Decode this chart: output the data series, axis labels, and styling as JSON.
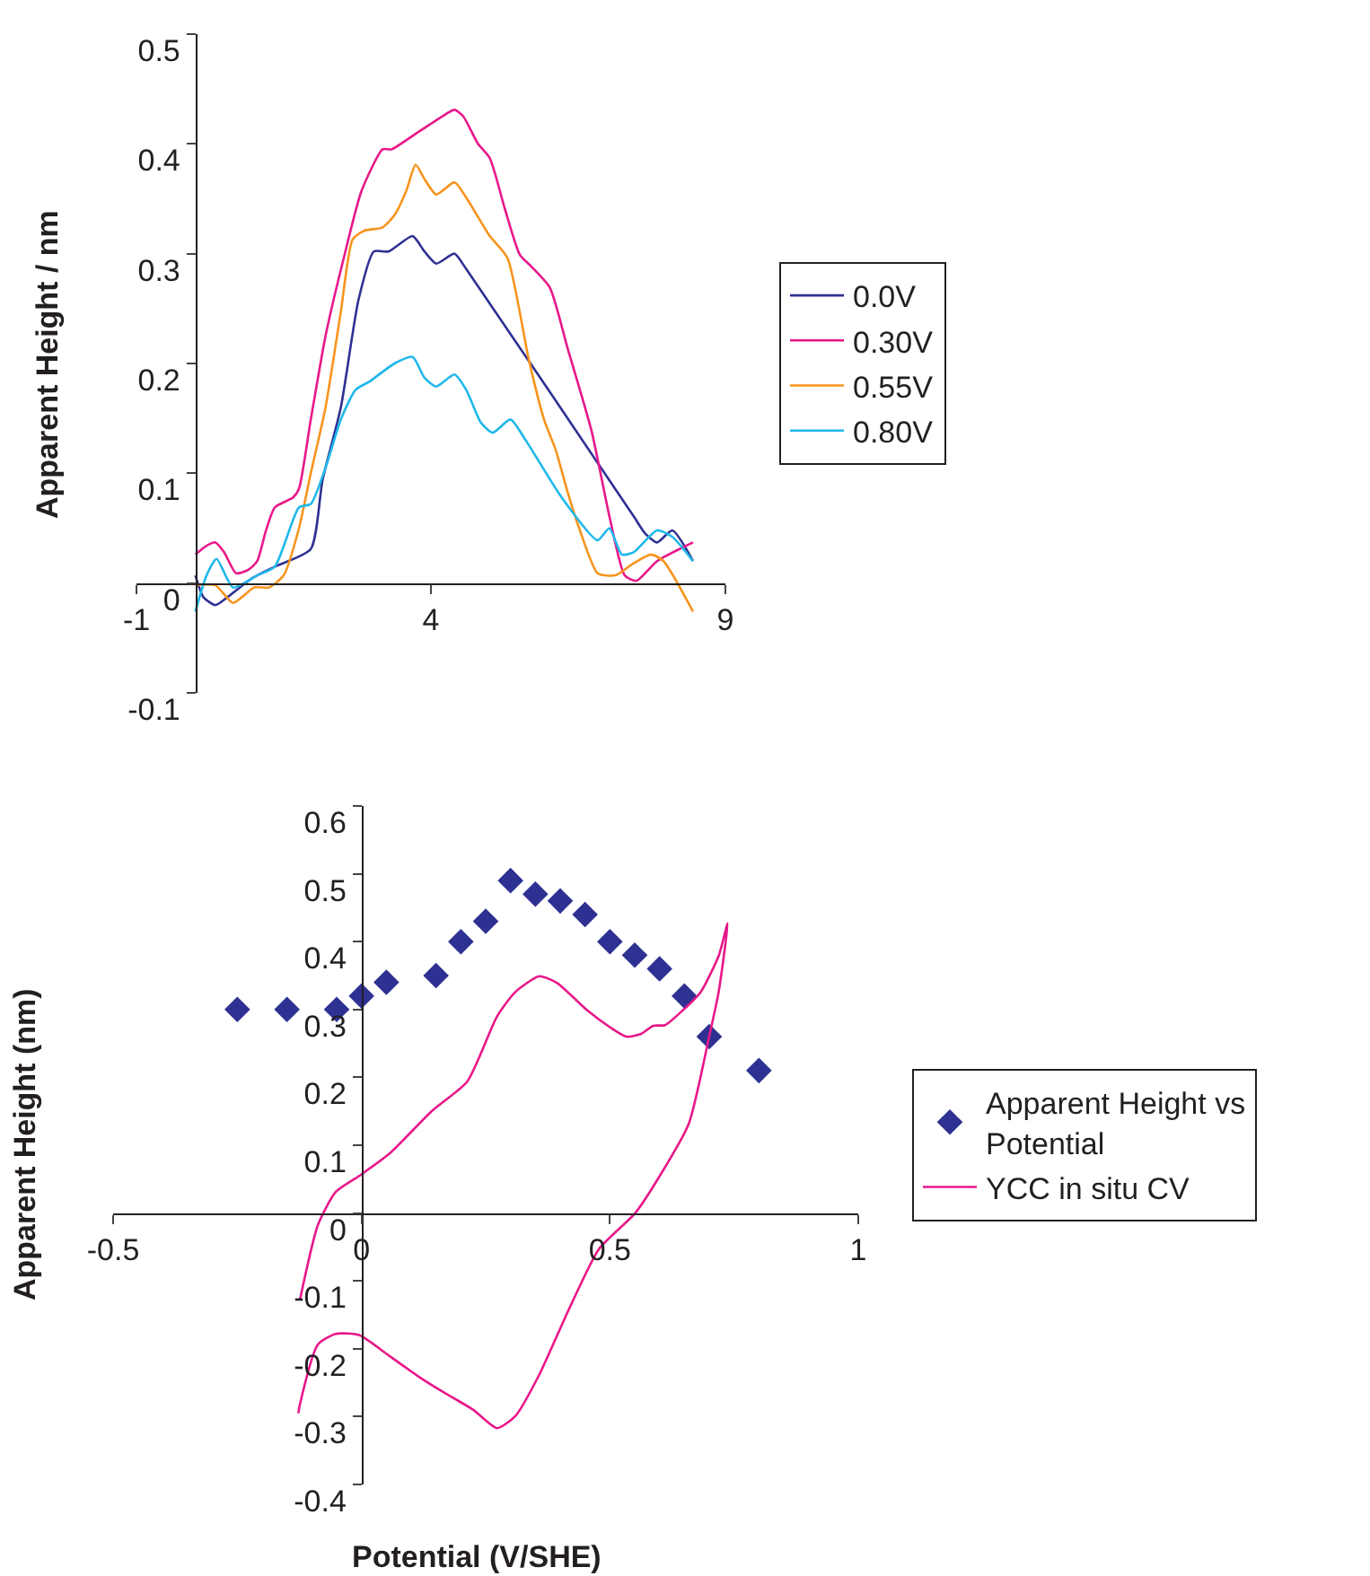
{
  "chart_data": [
    {
      "type": "line",
      "ylabel": "Apparent Height / nm",
      "xlim": [
        -1,
        9
      ],
      "xticks": [
        -1,
        4,
        9
      ],
      "ylim": [
        -0.1,
        0.5
      ],
      "yticks": [
        0.5,
        0.4,
        0.3,
        0.2,
        0.1,
        0,
        -0.1
      ],
      "grid": false,
      "legend": "right",
      "marker": "none",
      "line_style": "solid",
      "series": [
        {
          "name": "0.0V",
          "color": "#2e3192",
          "x": [
            0,
            0.14,
            0.34,
            0.54,
            0.95,
            1.35,
            1.96,
            2.16,
            2.47,
            2.77,
            3.03,
            3.28,
            3.69,
            3.89,
            4.09,
            4.4,
            4.6,
            7.44,
            7.64,
            7.84,
            8.1,
            8.45
          ],
          "values": [
            0.007,
            -0.013,
            -0.02,
            -0.013,
            0.004,
            0.015,
            0.031,
            0.094,
            0.16,
            0.258,
            0.302,
            0.302,
            0.316,
            0.302,
            0.291,
            0.3,
            0.286,
            0.061,
            0.045,
            0.037,
            0.048,
            0.02
          ]
        },
        {
          "name": "0.30V",
          "color": "#e8178a",
          "x": [
            0,
            0.19,
            0.34,
            0.49,
            0.69,
            0.9,
            1.05,
            1.2,
            1.35,
            1.66,
            1.76,
            1.96,
            2.21,
            2.52,
            2.82,
            3.18,
            3.33,
            3.79,
            4.19,
            4.4,
            4.55,
            4.8,
            5.0,
            5.26,
            5.51,
            5.71,
            6.02,
            6.32,
            6.73,
            7.03,
            7.29,
            7.49,
            7.84,
            8.45
          ],
          "values": [
            0.026,
            0.034,
            0.037,
            0.028,
            0.009,
            0.012,
            0.02,
            0.048,
            0.069,
            0.078,
            0.086,
            0.149,
            0.225,
            0.296,
            0.357,
            0.395,
            0.395,
            0.411,
            0.425,
            0.431,
            0.425,
            0.4,
            0.387,
            0.34,
            0.299,
            0.288,
            0.269,
            0.214,
            0.138,
            0.061,
            0.007,
            0.002,
            0.02,
            0.037
          ]
        },
        {
          "name": "0.55V",
          "color": "#f7941d",
          "x": [
            0,
            0.34,
            0.64,
            1.0,
            1.25,
            1.5,
            1.76,
            1.96,
            2.21,
            2.47,
            2.67,
            2.87,
            3.18,
            3.38,
            3.58,
            3.74,
            3.89,
            4.09,
            4.4,
            4.6,
            5.0,
            5.3,
            5.66,
            5.92,
            6.12,
            6.32,
            6.53,
            6.83,
            7.13,
            7.44,
            7.74,
            7.95,
            8.45
          ],
          "values": [
            -0.002,
            -0.002,
            -0.018,
            -0.004,
            -0.004,
            0.007,
            0.05,
            0.1,
            0.16,
            0.247,
            0.313,
            0.321,
            0.324,
            0.335,
            0.357,
            0.381,
            0.368,
            0.354,
            0.365,
            0.351,
            0.316,
            0.296,
            0.204,
            0.149,
            0.121,
            0.083,
            0.048,
            0.009,
            0.007,
            0.018,
            0.026,
            0.02,
            -0.026
          ]
        },
        {
          "name": "0.80V",
          "color": "#1fb8eb",
          "x": [
            0,
            0.19,
            0.36,
            0.64,
            1.05,
            1.35,
            1.76,
            1.96,
            2.21,
            2.47,
            2.72,
            2.97,
            3.38,
            3.69,
            3.89,
            4.09,
            4.4,
            4.6,
            4.85,
            5.05,
            5.35,
            5.61,
            6.22,
            6.83,
            7.03,
            7.24,
            7.44,
            7.84,
            8.1,
            8.45
          ],
          "values": [
            -0.026,
            0.007,
            0.022,
            -0.004,
            0.007,
            0.015,
            0.069,
            0.072,
            0.105,
            0.149,
            0.176,
            0.184,
            0.2,
            0.206,
            0.187,
            0.179,
            0.19,
            0.176,
            0.146,
            0.137,
            0.149,
            0.13,
            0.078,
            0.039,
            0.05,
            0.026,
            0.028,
            0.048,
            0.042,
            0.02
          ]
        }
      ]
    },
    {
      "type": "scatter",
      "xlabel": "Potential (V/SHE)",
      "ylabel": "Apparent Height (nm)",
      "xlim": [
        -0.5,
        1
      ],
      "xticks": [
        -0.5,
        0,
        0.5,
        1
      ],
      "ylim": [
        -0.4,
        0.6
      ],
      "yticks": [
        0.6,
        0.5,
        0.4,
        0.3,
        0.2,
        0.1,
        0,
        -0.1,
        -0.2,
        -0.3,
        -0.4
      ],
      "grid": false,
      "legend": "right",
      "series": [
        {
          "name": "Apparent Height vs Potential",
          "type": "scatter",
          "marker": "diamond",
          "color": "#2e3192",
          "x": [
            -0.25,
            -0.15,
            -0.05,
            0,
            0.05,
            0.15,
            0.2,
            0.25,
            0.3,
            0.35,
            0.4,
            0.45,
            0.5,
            0.55,
            0.6,
            0.65,
            0.7,
            0.8
          ],
          "values": [
            0.3,
            0.3,
            0.3,
            0.32,
            0.34,
            0.35,
            0.4,
            0.43,
            0.49,
            0.47,
            0.46,
            0.44,
            0.4,
            0.38,
            0.36,
            0.32,
            0.26,
            0.21
          ]
        },
        {
          "name": "YCC in situ CV",
          "type": "line",
          "marker": "none",
          "line_style": "solid",
          "color": "#e8178a",
          "x": [
            -0.124,
            -0.088,
            -0.052,
            -0.004,
            0.057,
            0.141,
            0.213,
            0.273,
            0.31,
            0.358,
            0.394,
            0.454,
            0.502,
            0.533,
            0.563,
            0.587,
            0.611,
            0.647,
            0.683,
            0.719,
            0.737,
            0.719,
            0.701,
            0.659,
            0.599,
            0.551,
            0.478,
            0.418,
            0.358,
            0.31,
            0.273,
            0.225,
            0.165,
            0.117,
            0.057,
            -0.004,
            -0.052,
            -0.088,
            -0.124,
            -0.127
          ],
          "values": [
            -0.128,
            -0.018,
            0.031,
            0.055,
            0.088,
            0.15,
            0.194,
            0.29,
            0.326,
            0.349,
            0.339,
            0.299,
            0.273,
            0.26,
            0.264,
            0.276,
            0.277,
            0.299,
            0.326,
            0.379,
            0.427,
            0.326,
            0.264,
            0.132,
            0.053,
            0,
            -0.053,
            -0.141,
            -0.238,
            -0.299,
            -0.317,
            -0.29,
            -0.264,
            -0.242,
            -0.211,
            -0.18,
            -0.178,
            -0.194,
            -0.282,
            -0.295
          ]
        }
      ]
    }
  ]
}
